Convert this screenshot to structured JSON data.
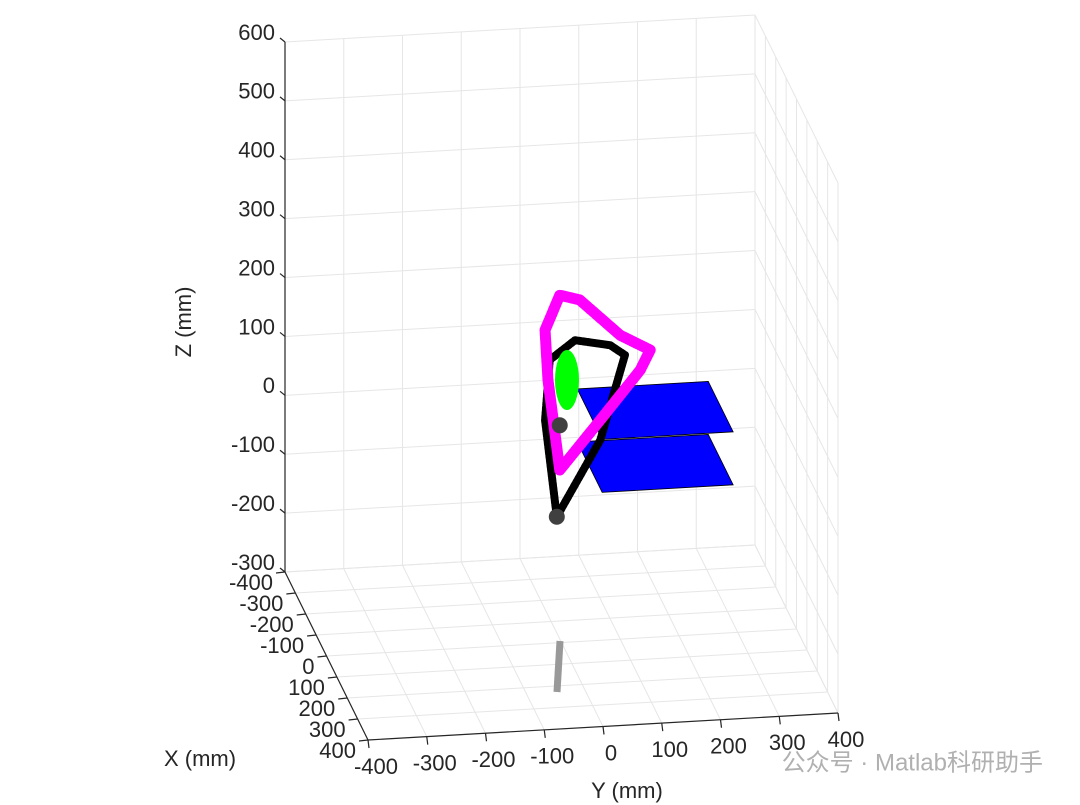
{
  "chart_data": {
    "type": "line3d",
    "xlabel": "X (mm)",
    "ylabel": "Y (mm)",
    "zlabel": "Z (mm)",
    "xlim": [
      -400,
      400
    ],
    "ylim": [
      -400,
      400
    ],
    "zlim": [
      -300,
      600
    ],
    "xticks": [
      -400,
      -300,
      -200,
      -100,
      0,
      100,
      200,
      300,
      400
    ],
    "yticks": [
      -400,
      -300,
      -200,
      -100,
      0,
      100,
      200,
      300,
      400
    ],
    "zticks": [
      -300,
      -200,
      -100,
      0,
      100,
      200,
      300,
      400,
      500,
      600
    ],
    "grid": true,
    "series": [
      {
        "color": "#000000",
        "mode": "lines",
        "x": [
          0,
          0,
          0,
          0,
          0,
          0,
          0,
          0
        ],
        "y": [
          -8,
          -28,
          -20,
          23,
          83,
          108,
          66,
          -8
        ],
        "z": [
          -86,
          79,
          181,
          212,
          200,
          182,
          40,
          -86
        ]
      },
      {
        "color": "#ff00ff",
        "mode": "lines",
        "x": [
          0,
          0,
          0,
          0,
          0,
          0,
          0,
          0,
          0,
          0
        ],
        "y": [
          -3,
          -23,
          -28,
          -3,
          31,
          100,
          151,
          134,
          66,
          -3
        ],
        "z": [
          -7,
          147,
          232,
          290,
          280,
          216,
          188,
          155,
          74,
          -7
        ]
      },
      {
        "color": "#404040",
        "mode": "markers",
        "x": [
          0,
          0
        ],
        "y": [
          -8,
          -3
        ],
        "z": [
          -86,
          69
        ]
      }
    ],
    "surfaces": [
      {
        "color": "#0000ff",
        "x": [
          -120,
          -120,
          120,
          120
        ],
        "y": [
          48,
          271,
          271,
          48
        ],
        "z": [
          85,
          85,
          85,
          85
        ]
      },
      {
        "color": "#0000ff",
        "x": [
          -120,
          -120,
          120,
          120
        ],
        "y": [
          48,
          271,
          271,
          48
        ],
        "z": [
          -5,
          -5,
          -5,
          -5
        ]
      }
    ],
    "watermark": "公众号 · Matlab科研助手"
  }
}
